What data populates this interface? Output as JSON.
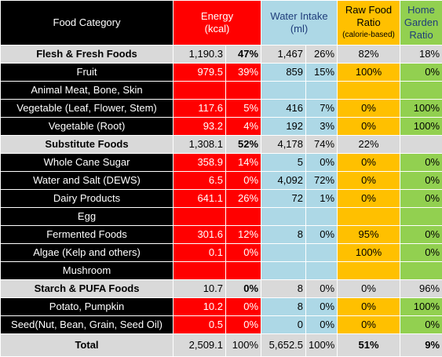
{
  "headers": {
    "category": "Food Category",
    "energy": "Energy",
    "energy_unit": "(kcal)",
    "water": "Water Intake",
    "water_unit": "(ml)",
    "raw": "Raw Food",
    "raw_2": "Ratio",
    "raw_sub": "(calorie-based)",
    "home": "Home",
    "home_2": "Garden",
    "home_3": "Ratio"
  },
  "colors": {
    "category_bg": "#000000",
    "energy_bg": "#ff0000",
    "water_bg": "#add8e6",
    "raw_bg": "#ffc000",
    "home_bg": "#92d050",
    "group_bg": "#d9d9d9"
  },
  "rows": [
    {
      "kind": "group",
      "name": "Flesh & Fresh Foods",
      "energy": "1,190.3",
      "energy_pct": "47%",
      "water": "1,467",
      "water_pct": "26%",
      "raw": "82%",
      "home": "18%"
    },
    {
      "kind": "item",
      "name": "Fruit",
      "energy": "979.5",
      "energy_pct": "39%",
      "water": "859",
      "water_pct": "15%",
      "raw": "100%",
      "home": "0%"
    },
    {
      "kind": "item",
      "name": "Animal Meat, Bone, Skin",
      "energy": "",
      "energy_pct": "",
      "water": "",
      "water_pct": "",
      "raw": "",
      "home": ""
    },
    {
      "kind": "item",
      "name": "Vegetable (Leaf, Flower, Stem)",
      "energy": "117.6",
      "energy_pct": "5%",
      "water": "416",
      "water_pct": "7%",
      "raw": "0%",
      "home": "100%"
    },
    {
      "kind": "item",
      "name": "Vegetable (Root)",
      "energy": "93.2",
      "energy_pct": "4%",
      "water": "192",
      "water_pct": "3%",
      "raw": "0%",
      "home": "100%"
    },
    {
      "kind": "group",
      "name": "Substitute Foods",
      "energy": "1,308.1",
      "energy_pct": "52%",
      "water": "4,178",
      "water_pct": "74%",
      "raw": "22%",
      "home": ""
    },
    {
      "kind": "item",
      "name": "Whole Cane Sugar",
      "energy": "358.9",
      "energy_pct": "14%",
      "water": "5",
      "water_pct": "0%",
      "raw": "0%",
      "home": "0%"
    },
    {
      "kind": "item",
      "name": "Water and Salt (DEWS)",
      "energy": "6.5",
      "energy_pct": "0%",
      "water": "4,092",
      "water_pct": "72%",
      "raw": "0%",
      "home": "0%"
    },
    {
      "kind": "item",
      "name": "Dairy Products",
      "energy": "641.1",
      "energy_pct": "26%",
      "water": "72",
      "water_pct": "1%",
      "raw": "0%",
      "home": "0%"
    },
    {
      "kind": "item",
      "name": "Egg",
      "energy": "",
      "energy_pct": "",
      "water": "",
      "water_pct": "",
      "raw": "",
      "home": ""
    },
    {
      "kind": "item",
      "name": "Fermented Foods",
      "energy": "301.6",
      "energy_pct": "12%",
      "water": "8",
      "water_pct": "0%",
      "raw": "95%",
      "home": "0%"
    },
    {
      "kind": "item",
      "name": "Algae (Kelp and others)",
      "energy": "0.1",
      "energy_pct": "0%",
      "water": "",
      "water_pct": "",
      "raw": "100%",
      "home": "0%"
    },
    {
      "kind": "item",
      "name": "Mushroom",
      "energy": "",
      "energy_pct": "",
      "water": "",
      "water_pct": "",
      "raw": "",
      "home": ""
    },
    {
      "kind": "group",
      "name": "Starch & PUFA Foods",
      "energy": "10.7",
      "energy_pct": "0%",
      "water": "8",
      "water_pct": "0%",
      "raw": "0%",
      "home": "96%"
    },
    {
      "kind": "item",
      "name": "Potato, Pumpkin",
      "energy": "10.2",
      "energy_pct": "0%",
      "water": "8",
      "water_pct": "0%",
      "raw": "0%",
      "home": "100%"
    },
    {
      "kind": "item",
      "name": "Seed(Nut, Bean, Grain, Seed Oil)",
      "energy": "0.5",
      "energy_pct": "0%",
      "water": "0",
      "water_pct": "0%",
      "raw": "0%",
      "home": "0%"
    },
    {
      "kind": "total",
      "name": "Total",
      "energy": "2,509.1",
      "energy_pct": "100%",
      "water": "5,652.5",
      "water_pct": "100%",
      "raw": "51%",
      "home": "9%"
    }
  ]
}
